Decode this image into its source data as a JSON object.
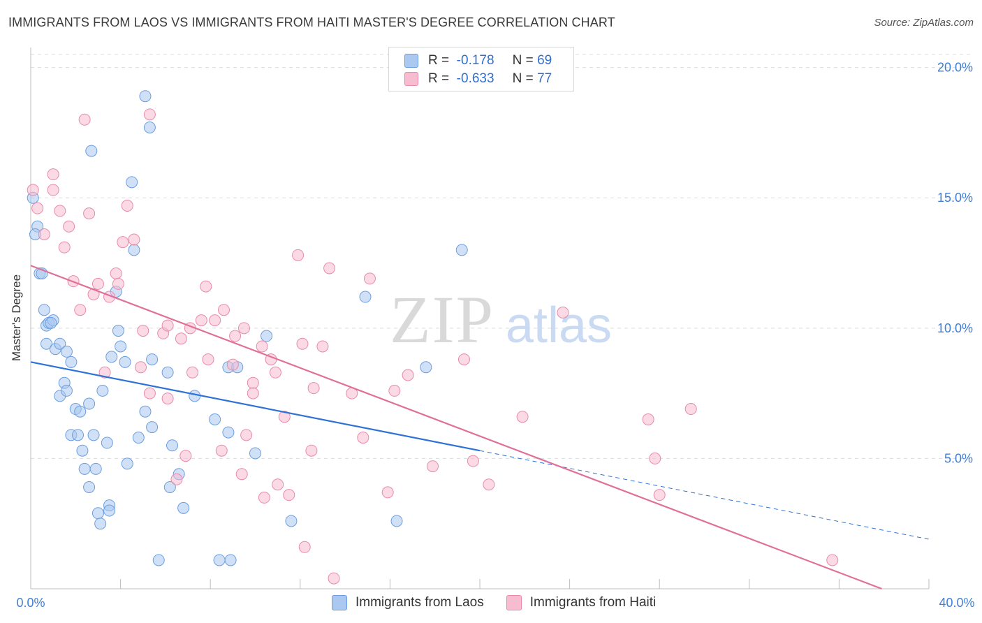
{
  "header": {
    "title": "IMMIGRANTS FROM LAOS VS IMMIGRANTS FROM HAITI MASTER'S DEGREE CORRELATION CHART",
    "source": "Source: ZipAtlas.com"
  },
  "legend": {
    "rows": [
      {
        "r_label": "R =",
        "r_value": "-0.178",
        "n_label": "N =",
        "n_value": "69"
      },
      {
        "r_label": "R =",
        "r_value": "-0.633",
        "n_label": "N =",
        "n_value": "77"
      }
    ]
  },
  "watermark": {
    "zip": "ZIP",
    "atlas": "atlas"
  },
  "colors": {
    "laos_fill": "#aac8f0",
    "laos_stroke": "#6a9ee0",
    "laos_line": "#2f72d6",
    "haiti_fill": "#f7bcd0",
    "haiti_stroke": "#e98aaa",
    "haiti_line": "#e0709a",
    "tick_text": "#3f7fd6",
    "grid": "#dcdcdc"
  },
  "chart_data": {
    "type": "scatter",
    "title": "IMMIGRANTS FROM LAOS VS IMMIGRANTS FROM HAITI MASTER'S DEGREE CORRELATION CHART",
    "xlabel": "",
    "ylabel": "Master's Degree",
    "xlim": [
      0,
      40
    ],
    "ylim": [
      0,
      20.5
    ],
    "x_tick_labels": [
      "0.0%",
      "40.0%"
    ],
    "y_ticks": [
      5,
      10,
      15,
      20
    ],
    "y_tick_labels": [
      "5.0%",
      "10.0%",
      "15.0%",
      "20.0%"
    ],
    "grid": true,
    "legend_position": "top-center",
    "series": [
      {
        "name": "Immigrants from Laos",
        "color": "#aac8f0",
        "trend": {
          "x": [
            0,
            20
          ],
          "y": [
            8.7,
            5.3
          ],
          "dashed_to": [
            40,
            1.9
          ]
        },
        "points": [
          [
            0.1,
            15.0
          ],
          [
            0.3,
            13.9
          ],
          [
            0.2,
            13.6
          ],
          [
            0.4,
            12.1
          ],
          [
            0.5,
            12.1
          ],
          [
            0.6,
            10.7
          ],
          [
            0.7,
            10.1
          ],
          [
            0.8,
            10.2
          ],
          [
            1.0,
            10.3
          ],
          [
            0.9,
            10.2
          ],
          [
            0.7,
            9.4
          ],
          [
            1.1,
            9.2
          ],
          [
            1.3,
            9.4
          ],
          [
            1.6,
            9.1
          ],
          [
            1.8,
            8.7
          ],
          [
            1.3,
            7.4
          ],
          [
            1.5,
            7.9
          ],
          [
            1.6,
            7.6
          ],
          [
            2.0,
            6.9
          ],
          [
            2.2,
            6.8
          ],
          [
            2.6,
            7.1
          ],
          [
            1.8,
            5.9
          ],
          [
            2.1,
            5.9
          ],
          [
            2.8,
            5.9
          ],
          [
            2.3,
            5.3
          ],
          [
            3.4,
            5.6
          ],
          [
            2.4,
            4.6
          ],
          [
            2.9,
            4.6
          ],
          [
            2.6,
            3.9
          ],
          [
            3.5,
            3.2
          ],
          [
            3.5,
            3.0
          ],
          [
            3.0,
            2.9
          ],
          [
            3.1,
            2.5
          ],
          [
            3.2,
            7.6
          ],
          [
            3.6,
            8.9
          ],
          [
            3.8,
            11.4
          ],
          [
            3.9,
            9.9
          ],
          [
            4.0,
            9.3
          ],
          [
            4.2,
            8.7
          ],
          [
            4.3,
            4.8
          ],
          [
            4.5,
            15.6
          ],
          [
            4.6,
            13.0
          ],
          [
            5.1,
            18.9
          ],
          [
            5.3,
            17.7
          ],
          [
            5.4,
            8.8
          ],
          [
            4.8,
            5.8
          ],
          [
            5.1,
            6.8
          ],
          [
            5.4,
            6.2
          ],
          [
            5.7,
            1.1
          ],
          [
            6.1,
            8.3
          ],
          [
            6.3,
            5.5
          ],
          [
            6.2,
            3.9
          ],
          [
            6.8,
            3.1
          ],
          [
            6.6,
            4.4
          ],
          [
            7.3,
            7.4
          ],
          [
            8.2,
            6.5
          ],
          [
            8.4,
            1.1
          ],
          [
            8.8,
            8.5
          ],
          [
            8.8,
            6.0
          ],
          [
            8.9,
            1.1
          ],
          [
            10.0,
            5.2
          ],
          [
            10.5,
            9.7
          ],
          [
            11.6,
            2.6
          ],
          [
            2.7,
            16.8
          ],
          [
            14.9,
            11.2
          ],
          [
            16.3,
            2.6
          ],
          [
            17.6,
            8.5
          ],
          [
            19.2,
            13.0
          ],
          [
            9.2,
            8.5
          ]
        ]
      },
      {
        "name": "Immigrants from Haiti",
        "color": "#f7bcd0",
        "trend": {
          "x": [
            0,
            37.9
          ],
          "y": [
            12.4,
            0.0
          ]
        },
        "points": [
          [
            0.1,
            15.3
          ],
          [
            0.3,
            14.6
          ],
          [
            0.6,
            13.6
          ],
          [
            1.0,
            15.3
          ],
          [
            1.0,
            15.9
          ],
          [
            1.3,
            14.5
          ],
          [
            1.5,
            13.1
          ],
          [
            1.7,
            13.9
          ],
          [
            1.9,
            11.8
          ],
          [
            2.2,
            10.7
          ],
          [
            2.6,
            14.4
          ],
          [
            2.4,
            18.0
          ],
          [
            2.8,
            11.3
          ],
          [
            3.0,
            11.7
          ],
          [
            3.3,
            8.3
          ],
          [
            3.5,
            11.2
          ],
          [
            3.8,
            12.1
          ],
          [
            3.9,
            11.7
          ],
          [
            4.1,
            13.3
          ],
          [
            4.3,
            14.7
          ],
          [
            4.6,
            13.4
          ],
          [
            5.3,
            18.2
          ],
          [
            4.9,
            8.5
          ],
          [
            5.0,
            9.9
          ],
          [
            5.3,
            7.5
          ],
          [
            5.9,
            9.8
          ],
          [
            6.1,
            10.1
          ],
          [
            6.1,
            7.3
          ],
          [
            6.5,
            4.2
          ],
          [
            6.7,
            9.6
          ],
          [
            6.9,
            5.1
          ],
          [
            7.1,
            10.0
          ],
          [
            7.2,
            8.3
          ],
          [
            7.6,
            10.3
          ],
          [
            7.8,
            11.6
          ],
          [
            7.9,
            8.8
          ],
          [
            8.2,
            10.3
          ],
          [
            8.6,
            10.7
          ],
          [
            8.5,
            5.3
          ],
          [
            9.0,
            8.6
          ],
          [
            9.1,
            9.7
          ],
          [
            9.5,
            10.0
          ],
          [
            9.6,
            5.9
          ],
          [
            9.4,
            4.4
          ],
          [
            9.9,
            7.9
          ],
          [
            9.9,
            7.5
          ],
          [
            10.3,
            9.3
          ],
          [
            10.4,
            3.5
          ],
          [
            10.7,
            8.8
          ],
          [
            10.9,
            8.3
          ],
          [
            11.0,
            4.0
          ],
          [
            11.3,
            6.6
          ],
          [
            11.5,
            3.6
          ],
          [
            11.9,
            12.8
          ],
          [
            12.1,
            9.4
          ],
          [
            12.2,
            1.6
          ],
          [
            12.5,
            5.3
          ],
          [
            12.6,
            7.7
          ],
          [
            13.0,
            9.3
          ],
          [
            13.3,
            12.3
          ],
          [
            13.5,
            0.4
          ],
          [
            14.3,
            7.5
          ],
          [
            14.8,
            5.8
          ],
          [
            15.1,
            11.9
          ],
          [
            15.9,
            3.7
          ],
          [
            16.2,
            7.6
          ],
          [
            16.8,
            8.2
          ],
          [
            17.9,
            4.7
          ],
          [
            19.3,
            8.8
          ],
          [
            19.7,
            4.9
          ],
          [
            20.4,
            4.0
          ],
          [
            21.9,
            6.6
          ],
          [
            23.7,
            10.6
          ],
          [
            27.5,
            6.5
          ],
          [
            27.8,
            5.0
          ],
          [
            28.0,
            3.6
          ],
          [
            29.4,
            6.9
          ],
          [
            35.7,
            1.1
          ]
        ]
      }
    ]
  },
  "bottom_legend": [
    {
      "label": "Immigrants from Laos"
    },
    {
      "label": "Immigrants from Haiti"
    }
  ]
}
